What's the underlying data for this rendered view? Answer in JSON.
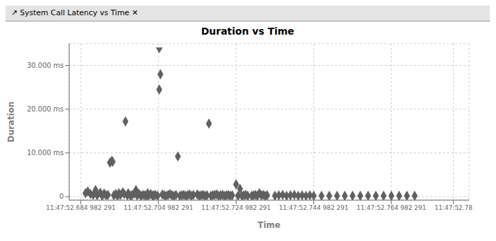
{
  "chart_data": {
    "type": "scatter",
    "title": "Duration vs Time",
    "annotations": [
      "↗ System Call Latency vs Time  ✕"
    ],
    "x_label": "Time",
    "y_label": "Duration",
    "xlim": [
      -3000,
      100000
    ],
    "xticks": [
      {
        "value": 0,
        "label": "11:47:52.684 982 291"
      },
      {
        "value": 20000,
        "label": "11:47:52.704 982 291"
      },
      {
        "value": 40000,
        "label": "11:47:52.724 982 291"
      },
      {
        "value": 60000,
        "label": "11:47:52.744 982 291"
      },
      {
        "value": 80000,
        "label": "11:47:52.764 982 291"
      },
      {
        "value": 96000,
        "label": "11:47:52.78"
      }
    ],
    "ylim": [
      -800,
      35000
    ],
    "yticks": [
      0,
      {
        "value": 10000,
        "label": "10.000 ms"
      },
      {
        "value": 20000,
        "label": "20.000 ms"
      },
      {
        "value": 30000,
        "label": "30.000 ms"
      }
    ],
    "grid": true,
    "series": [
      {
        "color": "#606060",
        "marker": "diamond",
        "x": [
          1200,
          1800,
          2500,
          3200,
          3800,
          4200,
          5000,
          5500,
          6000,
          6500,
          7000,
          7500,
          8000,
          8200,
          8500,
          9000,
          9500,
          9800,
          10200,
          10800,
          11200,
          11500,
          12000,
          12200,
          12800,
          13200,
          13800,
          14200,
          14500,
          15000,
          15500,
          16000,
          16500,
          17000,
          17200,
          17500,
          18000,
          18500,
          18800,
          19200,
          19800,
          20200,
          20500,
          21000,
          21500,
          22000,
          22500,
          23000,
          23500,
          24000,
          24500,
          25000,
          25500,
          26000,
          26500,
          27000,
          27500,
          28000,
          28500,
          29000,
          30000,
          30500,
          31000,
          31500,
          32000,
          32500,
          33000,
          33500,
          34000,
          34500,
          35000,
          35500,
          36000,
          36500,
          37000,
          37500,
          38000,
          38500,
          39000,
          40000,
          40500,
          41000,
          41500,
          42000,
          42500,
          43000,
          44000,
          44500,
          45000,
          45500,
          46000,
          46500,
          47000,
          47500,
          48000,
          50000,
          51000,
          52000,
          53000,
          54000,
          55000,
          56000,
          57000,
          58000,
          59000,
          60000,
          62000,
          64000,
          66000,
          68000,
          70000,
          72000,
          74000,
          76000,
          78000,
          80000,
          82000,
          84000,
          86000
        ],
        "values": [
          800,
          1200,
          600,
          400,
          1500,
          300,
          900,
          200,
          700,
          300,
          400,
          7800,
          8200,
          8000,
          300,
          600,
          200,
          800,
          400,
          1000,
          600,
          17200,
          300,
          800,
          200,
          400,
          700,
          1500,
          300,
          600,
          200,
          400,
          300,
          200,
          800,
          300,
          600,
          200,
          300,
          400,
          200,
          24500,
          28000,
          500,
          300,
          200,
          400,
          600,
          300,
          200,
          400,
          9200,
          200,
          300,
          400,
          200,
          300,
          500,
          200,
          400,
          500,
          200,
          300,
          400,
          200,
          300,
          16700,
          200,
          300,
          400,
          500,
          200,
          300,
          400,
          200,
          300,
          400,
          200,
          300,
          2800,
          200,
          1800,
          200,
          300,
          400,
          200,
          200,
          300,
          400,
          200,
          800,
          300,
          400,
          200,
          300,
          200,
          300,
          400,
          200,
          300,
          400,
          200,
          300,
          200,
          300,
          200,
          200,
          200,
          200,
          200,
          200,
          200,
          200,
          200,
          200,
          200,
          200,
          200,
          200
        ]
      },
      {
        "color": "#606060",
        "marker": "triangle-down",
        "x": [
          20200
        ],
        "values": [
          33500
        ]
      }
    ]
  }
}
